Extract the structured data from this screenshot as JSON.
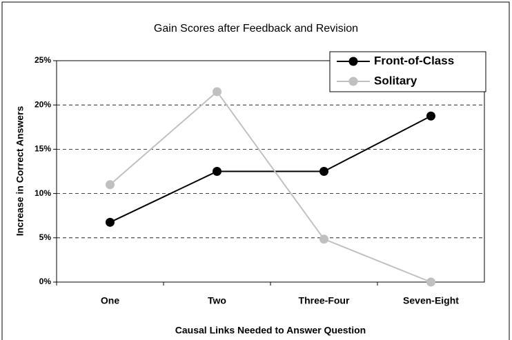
{
  "chart_data": {
    "type": "line",
    "title": "Gain Scores after Feedback and Revision",
    "x_label": "Causal Links Needed to Answer Question",
    "y_label": "Increase in Correct Answers",
    "categories": [
      "One",
      "Two",
      "Three-Four",
      "Seven-Eight"
    ],
    "series": [
      {
        "name": "Front-of-Class",
        "color": "#000000",
        "values": [
          6.75,
          12.5,
          12.5,
          18.75
        ]
      },
      {
        "name": "Solitary",
        "color": "#c0c0c0",
        "values": [
          11,
          21.5,
          4.85,
          0
        ]
      }
    ],
    "ylim": [
      0,
      25
    ],
    "yticks": [
      {
        "value": 0,
        "label": "0%"
      },
      {
        "value": 5,
        "label": "5%"
      },
      {
        "value": 10,
        "label": "10%"
      },
      {
        "value": 15,
        "label": "15%"
      },
      {
        "value": 20,
        "label": "20%"
      },
      {
        "value": 25,
        "label": "25%"
      }
    ],
    "grid": true,
    "legend": "upper right"
  }
}
